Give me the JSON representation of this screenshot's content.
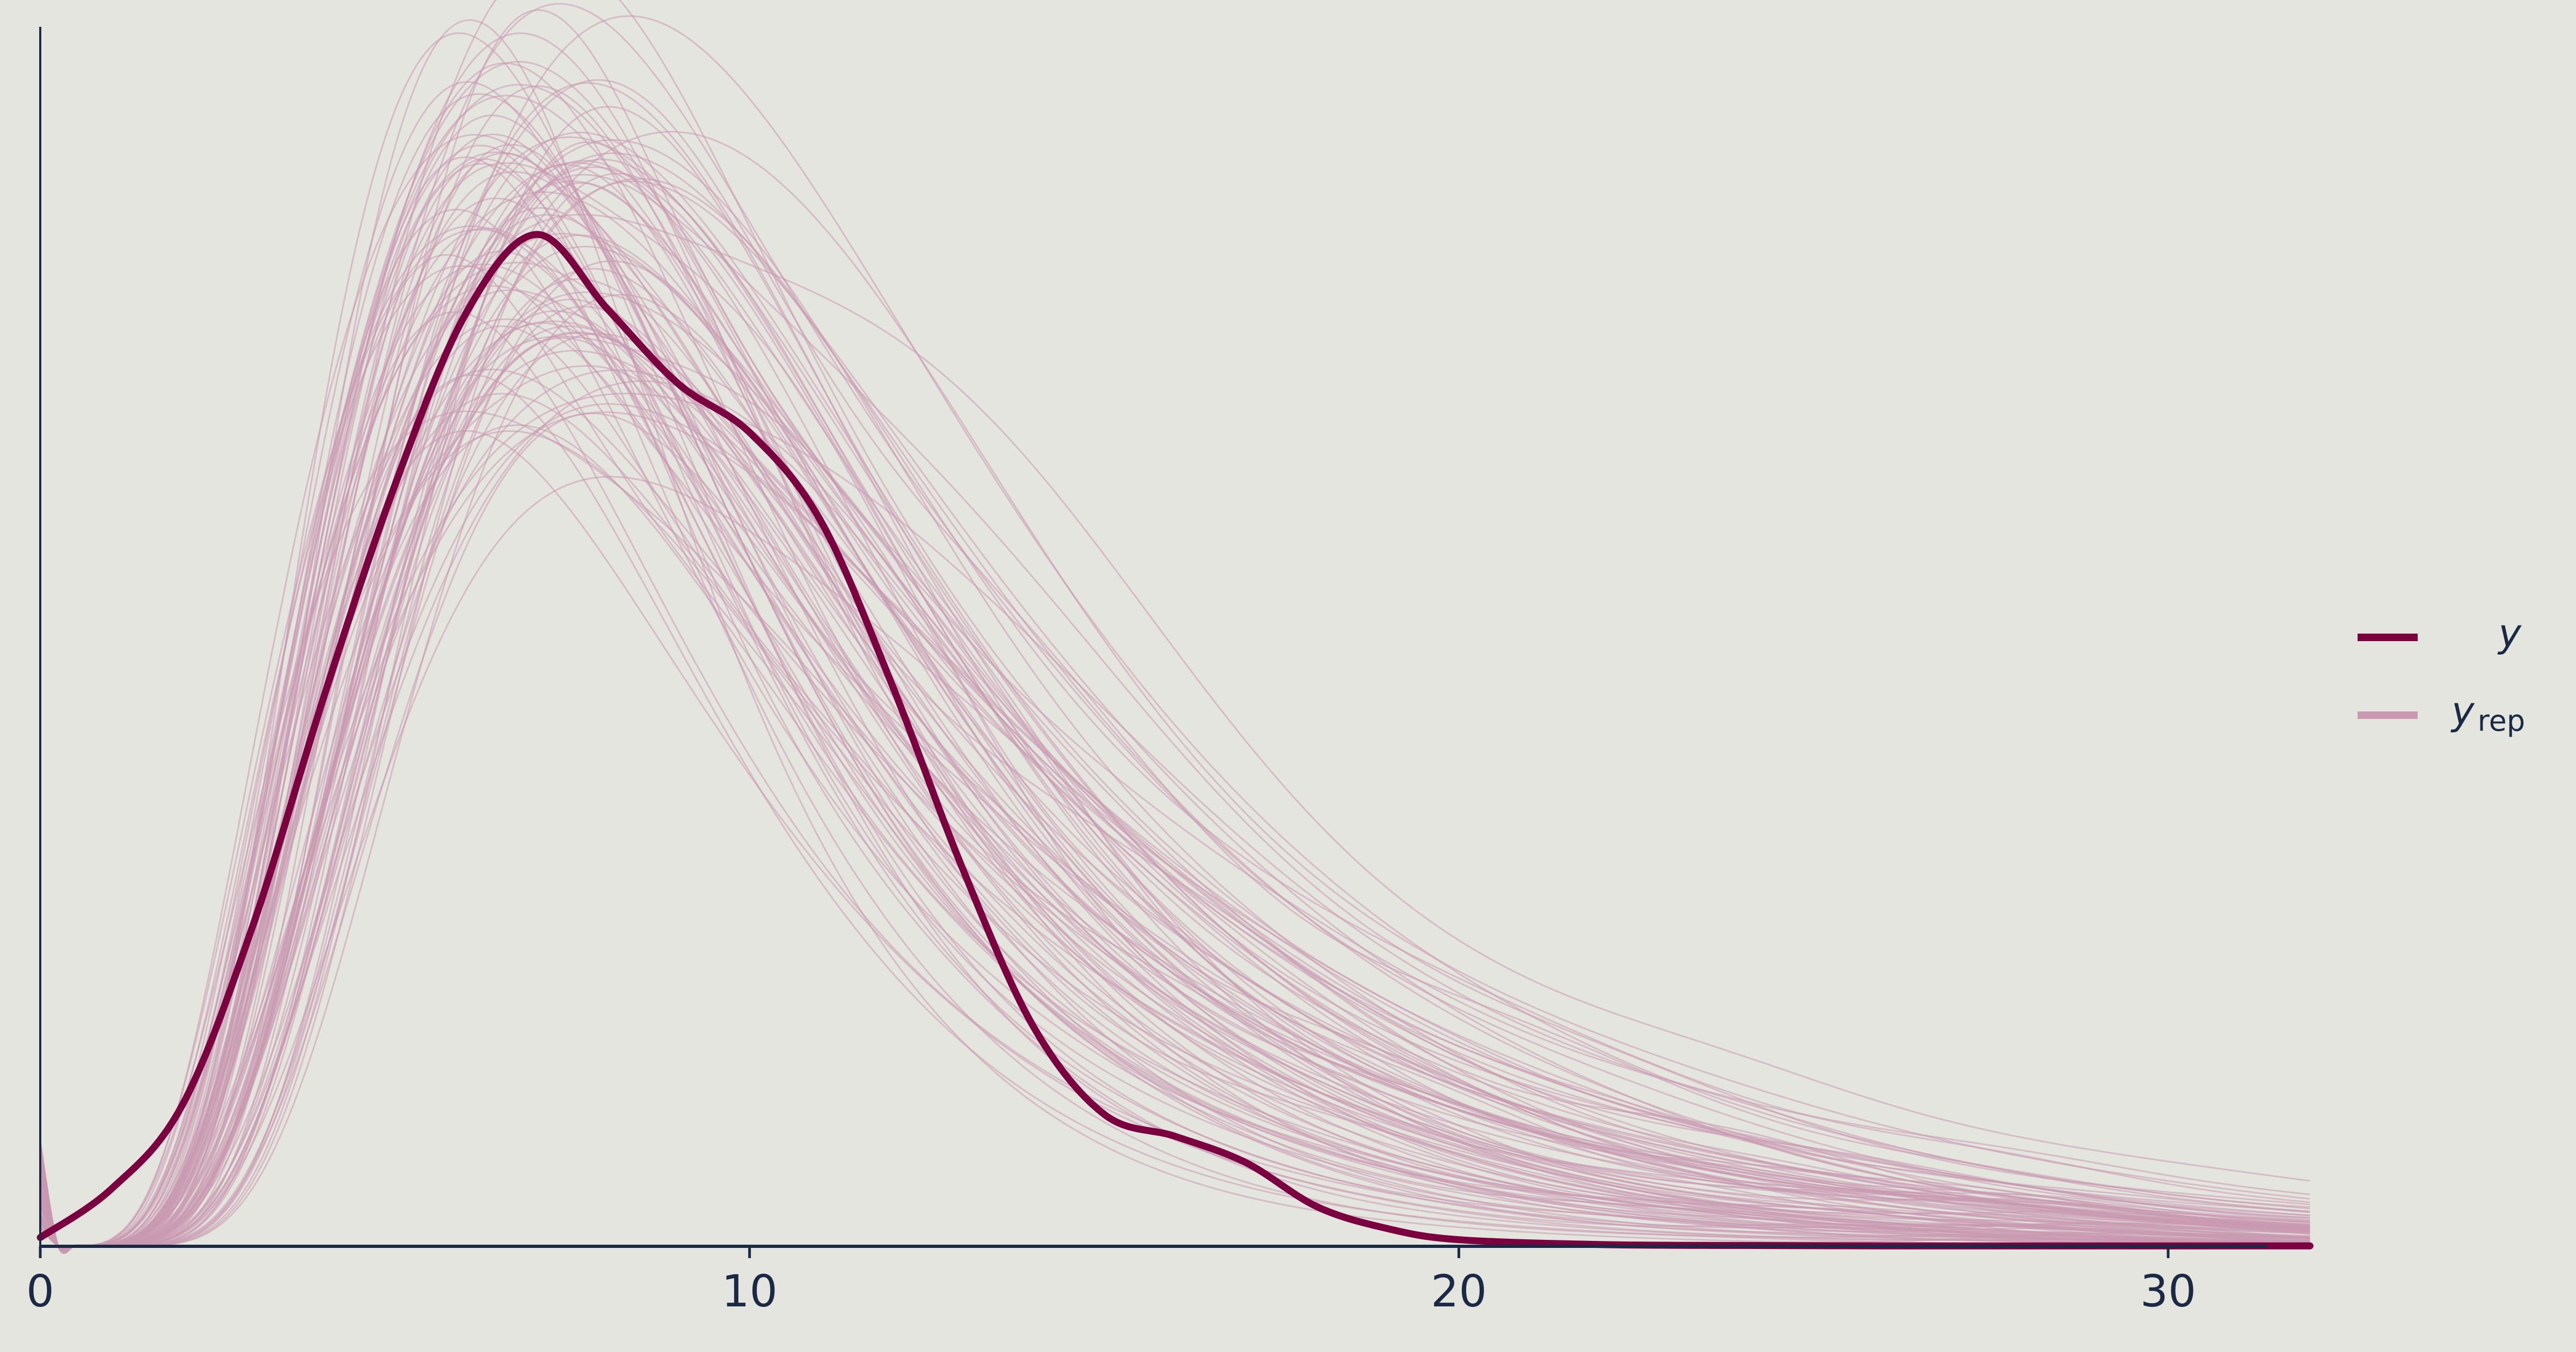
{
  "chart_data": {
    "type": "line",
    "title": "",
    "xlabel": "",
    "ylabel": "",
    "xlim": [
      0,
      32
    ],
    "x_ticks": [
      0,
      10,
      20,
      30
    ],
    "x_tick_labels": [
      "0",
      "10",
      "20",
      "30"
    ],
    "y_axis_tick_labels": false,
    "grid": false,
    "legend_position": "right",
    "colors": {
      "background": "#e5e5e0",
      "y": "#7a0040",
      "y_rep": "#c999b1",
      "axis": "#1a2a44"
    },
    "series": [
      {
        "name": "y",
        "role": "observed",
        "x": [
          0,
          1,
          2,
          3,
          4,
          5,
          6,
          7,
          8,
          9,
          10,
          11,
          12,
          13,
          14,
          15,
          16,
          17,
          18,
          19,
          20,
          22,
          24,
          26,
          28,
          30,
          32
        ],
        "y": [
          0.002,
          0.013,
          0.032,
          0.073,
          0.125,
          0.173,
          0.212,
          0.23,
          0.213,
          0.196,
          0.185,
          0.165,
          0.128,
          0.086,
          0.05,
          0.03,
          0.025,
          0.019,
          0.009,
          0.004,
          0.0015,
          0.0004,
          0.0002,
          0.0001,
          0.0001,
          0.0001,
          0.0001
        ]
      },
      {
        "name": "y_rep",
        "role": "replicated",
        "count": 100,
        "representative_x": [
          0,
          1,
          2,
          3,
          4,
          5,
          6,
          7,
          8,
          9,
          10,
          11,
          12,
          13,
          14,
          15,
          16,
          17,
          18,
          19,
          20,
          22,
          24,
          26,
          28,
          30,
          32
        ],
        "representative_y": [
          0.012,
          0.038,
          0.08,
          0.13,
          0.178,
          0.213,
          0.23,
          0.228,
          0.208,
          0.175,
          0.138,
          0.103,
          0.074,
          0.052,
          0.036,
          0.025,
          0.018,
          0.012,
          0.008,
          0.005,
          0.003,
          0.0015,
          0.0008,
          0.0004,
          0.0003,
          0.0002,
          0.0002
        ],
        "peak_range": [
          0.19,
          0.275
        ],
        "mode_range": [
          5.8,
          8.3
        ]
      }
    ],
    "legend": {
      "y_label": "y",
      "yrep_label": "y",
      "yrep_subscript": "rep"
    }
  }
}
